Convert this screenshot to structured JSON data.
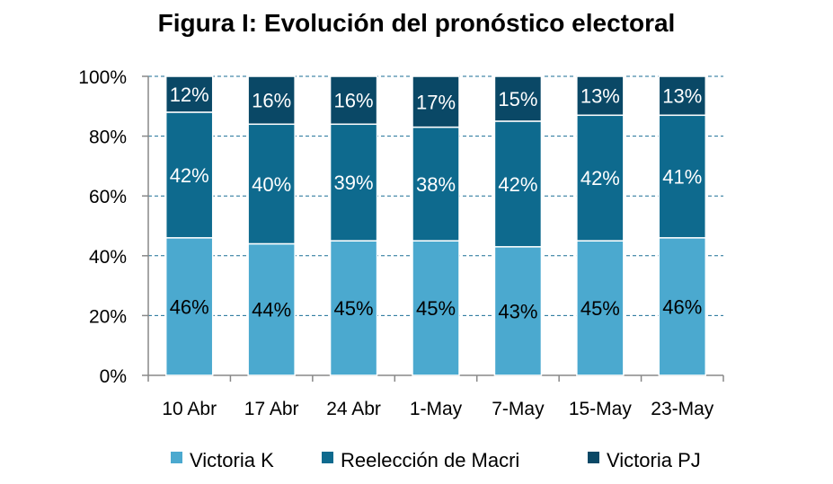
{
  "chart_data": {
    "type": "bar",
    "stacked": true,
    "title": "Figura I: Evolución del pronóstico electoral",
    "categories": [
      "10 Abr",
      "17 Abr",
      "24 Abr",
      "1-May",
      "7-May",
      "15-May",
      "23-May"
    ],
    "series": [
      {
        "name": "Victoria K",
        "color": "#4BA9CF",
        "values": [
          46,
          44,
          45,
          45,
          43,
          45,
          46
        ]
      },
      {
        "name": "Reelección  de Macri",
        "color": "#0E6A8E",
        "values": [
          42,
          40,
          39,
          38,
          42,
          42,
          41
        ]
      },
      {
        "name": "Victoria PJ",
        "color": "#0A4866",
        "values": [
          12,
          16,
          16,
          17,
          15,
          13,
          13
        ]
      }
    ],
    "yticks": [
      "0%",
      "20%",
      "40%",
      "60%",
      "80%",
      "100%"
    ],
    "ylim": [
      0,
      100
    ],
    "grid": true,
    "legend": "bottom"
  }
}
